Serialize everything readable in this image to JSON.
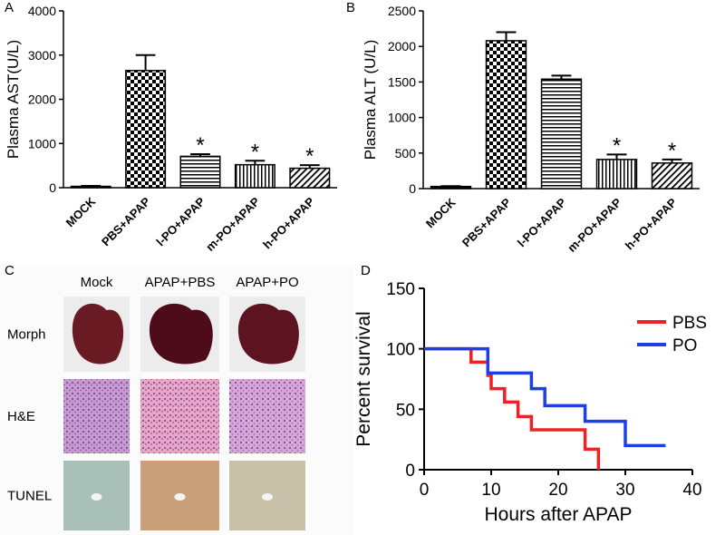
{
  "chart_data": [
    {
      "type": "bar",
      "label": "A",
      "ylabel": "Plasma AST(U/L)",
      "categories": [
        "MOCK",
        "PBS+APAP",
        "l-PO+APAP",
        "m-PO+APAP",
        "h-PO+APAP"
      ],
      "values": [
        30,
        2650,
        710,
        520,
        440
      ],
      "errors": [
        10,
        350,
        50,
        90,
        70
      ],
      "markers": [
        null,
        null,
        "*",
        "*",
        "*"
      ],
      "patterns": [
        "solid",
        "checker",
        "hlines",
        "vlines",
        "diagonal"
      ],
      "color": "#000000",
      "ylim": [
        0,
        4000
      ],
      "yticks": [
        0,
        1000,
        2000,
        3000,
        4000
      ]
    },
    {
      "type": "bar",
      "label": "B",
      "ylabel": "Plasma ALT (U/L)",
      "categories": [
        "MOCK",
        "PBS+APAP",
        "l-PO+APAP",
        "m-PO+APAP",
        "h-PO+APAP"
      ],
      "values": [
        30,
        2080,
        1540,
        410,
        360
      ],
      "errors": [
        5,
        120,
        50,
        70,
        50
      ],
      "markers": [
        null,
        null,
        null,
        "*",
        "*"
      ],
      "patterns": [
        "solid",
        "checker",
        "hlines",
        "vlines",
        "diagonal"
      ],
      "color": "#000000",
      "ylim": [
        0,
        2500
      ],
      "yticks": [
        0,
        500,
        1000,
        1500,
        2000,
        2500
      ]
    },
    {
      "type": "image-grid",
      "label": "C",
      "columns": [
        "Mock",
        "APAP+PBS",
        "APAP+PO"
      ],
      "rows": [
        "Morph",
        "H&E",
        "TUNEL"
      ]
    },
    {
      "type": "step",
      "label": "D",
      "xlabel": "Hours after APAP",
      "ylabel": "Percent survival",
      "series": [
        {
          "name": "PBS",
          "color": "#ee2222",
          "x": [
            0,
            7,
            9.5,
            10,
            12,
            14,
            16,
            24,
            26
          ],
          "values": [
            100,
            89,
            78,
            67,
            56,
            44,
            33,
            17,
            0
          ]
        },
        {
          "name": "PO",
          "color": "#1f3ee6",
          "x": [
            0,
            9.5,
            16,
            18,
            24,
            30,
            36
          ],
          "values": [
            100,
            80,
            67,
            53,
            40,
            20,
            20
          ]
        }
      ],
      "xlim": [
        0,
        40
      ],
      "xticks": [
        0,
        10,
        20,
        30,
        40
      ],
      "ylim": [
        0,
        150
      ],
      "yticks": [
        0,
        50,
        100,
        150
      ]
    }
  ]
}
